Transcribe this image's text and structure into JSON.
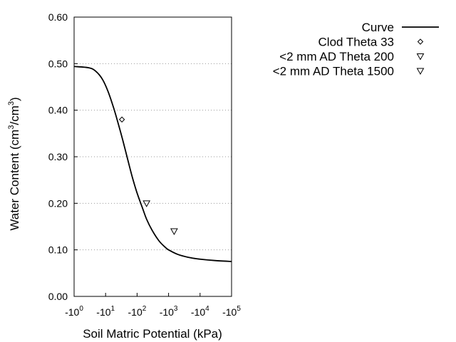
{
  "chart_data": {
    "type": "scatter",
    "title": "",
    "xlabel": "Soil Matric Potential (kPa)",
    "ylabel_main": "Water Content (cm",
    "ylabel_sup1": "3",
    "ylabel_mid": "/cm",
    "ylabel_sup2": "3",
    "ylabel_end": ")",
    "x_scale": "log (negative potential)",
    "xlim_kpa": [
      -1,
      -100000
    ],
    "ylim": [
      0.0,
      0.6
    ],
    "grid": "horizontal dotted",
    "legend_placement": "top-right, outside plot",
    "x_ticks": [
      {
        "exp": 0,
        "base": "-10",
        "sup": "0"
      },
      {
        "exp": 1,
        "base": "-10",
        "sup": "1"
      },
      {
        "exp": 2,
        "base": "-10",
        "sup": "2"
      },
      {
        "exp": 3,
        "base": "-10",
        "sup": "3"
      },
      {
        "exp": 4,
        "base": "-10",
        "sup": "4"
      },
      {
        "exp": 5,
        "base": "-10",
        "sup": "5"
      }
    ],
    "y_ticks": [
      {
        "value": 0.0,
        "label": "0.00"
      },
      {
        "value": 0.1,
        "label": "0.10"
      },
      {
        "value": 0.2,
        "label": "0.20"
      },
      {
        "value": 0.3,
        "label": "0.30"
      },
      {
        "value": 0.4,
        "label": "0.40"
      },
      {
        "value": 0.5,
        "label": "0.50"
      },
      {
        "value": 0.6,
        "label": "0.60"
      }
    ],
    "series": [
      {
        "name": "Curve",
        "kind": "line",
        "color": "#000000",
        "x_kpa": [
          -1,
          -3,
          -5,
          -8,
          -12,
          -18,
          -25,
          -35,
          -50,
          -70,
          -100,
          -150,
          -200,
          -300,
          -500,
          -800,
          -1000,
          -2000,
          -5000,
          -10000,
          -30000,
          -100000
        ],
        "y": [
          0.494,
          0.491,
          0.483,
          0.466,
          0.44,
          0.405,
          0.372,
          0.336,
          0.295,
          0.257,
          0.222,
          0.189,
          0.166,
          0.142,
          0.119,
          0.105,
          0.1,
          0.09,
          0.083,
          0.08,
          0.077,
          0.075
        ]
      },
      {
        "name": "Clod Theta 33",
        "kind": "marker",
        "marker": "diamond",
        "color": "#000000",
        "x_kpa": [
          -33
        ],
        "y": [
          0.38
        ]
      },
      {
        "name": "<2 mm AD Theta 200",
        "kind": "marker",
        "marker": "triangle-down",
        "color": "#000000",
        "x_kpa": [
          -200
        ],
        "y": [
          0.2
        ]
      },
      {
        "name": "<2 mm AD Theta 1500",
        "kind": "marker",
        "marker": "triangle-down",
        "color": "#000000",
        "x_kpa": [
          -1500
        ],
        "y": [
          0.14
        ]
      }
    ]
  }
}
